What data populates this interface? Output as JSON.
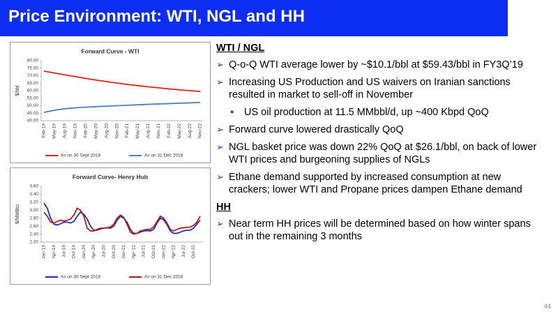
{
  "header": {
    "title": "Price Environment: WTI, NGL and HH"
  },
  "chart_data": [
    {
      "type": "line",
      "title": "Forward Curve - WTI",
      "y_label": "$/bbl",
      "categories": [
        "Feb-19",
        "May-19",
        "Aug-19",
        "Nov-19",
        "Feb-20",
        "May-20",
        "Aug-20",
        "Nov-20",
        "Feb-21",
        "May-21",
        "Aug-21",
        "Nov-21",
        "Feb-22",
        "May-22",
        "Aug-22",
        "Nov-22"
      ],
      "series": [
        {
          "name": "As on 30 Sept 2018",
          "color": "#e32119",
          "values": [
            73,
            71.8,
            70.6,
            69.4,
            68.2,
            67.1,
            66.1,
            65.1,
            64.2,
            63.4,
            62.6,
            61.9,
            61.2,
            60.6,
            60.0,
            59.5
          ]
        },
        {
          "name": "As on 31 Dec 2018",
          "color": "#4a7ebb",
          "values": [
            45.5,
            47,
            48,
            48.6,
            49,
            49.4,
            49.7,
            50,
            50.3,
            50.6,
            50.9,
            51.2,
            51.4,
            51.7,
            51.9,
            52.2
          ]
        }
      ],
      "ylim": [
        40,
        80
      ],
      "yticks": [
        {
          "value": 40,
          "label": "40.00"
        },
        {
          "value": 45,
          "label": "45.00"
        },
        {
          "value": 50,
          "label": "50.00"
        },
        {
          "value": 55,
          "label": "55.00"
        },
        {
          "value": 60,
          "label": "60.00"
        },
        {
          "value": 65,
          "label": "65.00"
        },
        {
          "value": 70,
          "label": "70.00"
        },
        {
          "value": 75,
          "label": "75.00"
        },
        {
          "value": 80,
          "label": "80.00"
        }
      ],
      "grid": false,
      "legend": "bottom"
    },
    {
      "type": "line",
      "title": "Forward Curve- Henry Hub",
      "y_label": "$/MMBtu",
      "categories": [
        "Jan-19",
        null,
        null,
        "Apr-19",
        null,
        null,
        "Jul-19",
        null,
        null,
        "Oct-19",
        null,
        null,
        "Jan-20",
        null,
        null,
        "Apr-20",
        null,
        null,
        "Jul-20",
        null,
        null,
        "Oct-20",
        null,
        null,
        "Jan-21",
        null,
        null,
        "Apr-21",
        null,
        null,
        "Jul-21",
        null,
        null,
        "Oct-21",
        null,
        null,
        "Jan-22",
        null,
        null,
        "Apr-22",
        null,
        null,
        "Jul-22",
        null,
        null,
        "Oct-22",
        null,
        null
      ],
      "series": [
        {
          "name": "As on 30 Sept 2018",
          "color": "#1f2fbf",
          "values": [
            3.18,
            3.05,
            2.8,
            2.65,
            2.63,
            2.66,
            2.7,
            2.7,
            2.68,
            2.72,
            2.85,
            2.95,
            2.9,
            2.78,
            2.6,
            2.5,
            2.5,
            2.53,
            2.55,
            2.56,
            2.55,
            2.6,
            2.75,
            2.85,
            2.8,
            2.7,
            2.52,
            2.42,
            2.42,
            2.45,
            2.48,
            2.49,
            2.48,
            2.52,
            2.68,
            2.8,
            2.76,
            2.64,
            2.48,
            2.42,
            2.42,
            2.45,
            2.48,
            2.5,
            2.5,
            2.55,
            2.65,
            2.75
          ]
        },
        {
          "name": "As on 31 Dec 2018",
          "color": "#b01c1c",
          "values": [
            2.95,
            2.85,
            2.7,
            2.68,
            2.72,
            2.75,
            2.73,
            2.75,
            2.78,
            2.88,
            3.05,
            3.0,
            2.85,
            2.55,
            2.48,
            2.48,
            2.52,
            2.55,
            2.55,
            2.56,
            2.58,
            2.65,
            2.8,
            2.88,
            2.82,
            2.65,
            2.45,
            2.4,
            2.42,
            2.48,
            2.5,
            2.52,
            2.52,
            2.58,
            2.72,
            2.85,
            2.8,
            2.68,
            2.52,
            2.48,
            2.52,
            2.55,
            2.56,
            2.57,
            2.58,
            2.62,
            2.7,
            2.85
          ]
        }
      ],
      "ylim": [
        2.2,
        3.6
      ],
      "yticks": [
        {
          "value": 2.2,
          "label": "2.20"
        },
        {
          "value": 2.4,
          "label": "2.40"
        },
        {
          "value": 2.6,
          "label": "2.60"
        },
        {
          "value": 2.8,
          "label": "2.80"
        },
        {
          "value": 3.0,
          "label": "3.00"
        },
        {
          "value": 3.2,
          "label": "3.20"
        },
        {
          "value": 3.4,
          "label": "3.40"
        },
        {
          "value": 3.6,
          "label": "3.60"
        }
      ],
      "grid": false,
      "legend": "bottom"
    }
  ],
  "sections": [
    {
      "heading": "WTI / NGL",
      "items": [
        {
          "text": "Q-o-Q WTI average lower by ~$10.1/bbl at $59.43/bbl in FY3Q’19"
        },
        {
          "text": "Increasing US Production and US waivers on  Iranian sanctions resulted in market to sell-off in November",
          "subitems": [
            "US oil production at 11.5 MMbbl/d, up ~400 Kbpd QoQ"
          ]
        },
        {
          "text": "Forward curve lowered drastically QoQ"
        },
        {
          "text": "NGL basket price was down 22% QoQ at $26.1/bbl, on back of lower WTI prices and burgeoning supplies of NGLs"
        },
        {
          "text": "Ethane demand supported by increased consumption at new crackers; lower WTI and Propane prices  dampen Ethane demand"
        }
      ]
    },
    {
      "heading": "HH",
      "items": [
        {
          "text": "Near term HH prices will be determined based on how winter spans out in the remaining 3 months"
        }
      ]
    }
  ],
  "footer": {
    "page": "44"
  }
}
